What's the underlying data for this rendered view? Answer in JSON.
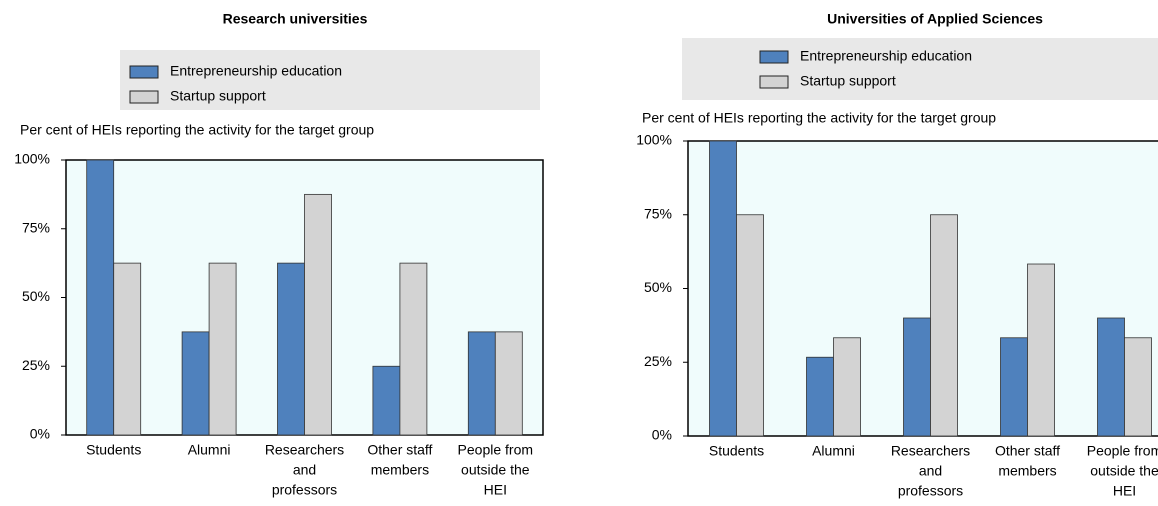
{
  "chart_data": [
    {
      "type": "bar",
      "title": "Research universities",
      "y_label": "Per cent of HEIs reporting the activity for the target group",
      "categories": [
        [
          "Students"
        ],
        [
          "Alumni"
        ],
        [
          "Researchers",
          "and",
          "professors"
        ],
        [
          "Other staff",
          "members"
        ],
        [
          "People from",
          "outside the",
          "HEI"
        ]
      ],
      "series": [
        {
          "name": "Entrepreneurship education",
          "color": "#4f81bd",
          "values": [
            100,
            37.5,
            62.5,
            25,
            37.5
          ]
        },
        {
          "name": "Startup support",
          "color": "#d3d3d3",
          "values": [
            62.5,
            62.5,
            87.5,
            62.5,
            37.5
          ]
        }
      ],
      "ylim": [
        0,
        100
      ],
      "yticks": [
        {
          "value": 0,
          "label": "0%"
        },
        {
          "value": 25,
          "label": "25%"
        },
        {
          "value": 50,
          "label": "50%"
        },
        {
          "value": 75,
          "label": "75%"
        },
        {
          "value": 100,
          "label": "100%"
        }
      ]
    },
    {
      "type": "bar",
      "title": "Universities of Applied Sciences",
      "y_label": "Per cent of HEIs reporting the activity for the target group",
      "categories": [
        [
          "Students"
        ],
        [
          "Alumni"
        ],
        [
          "Researchers",
          "and",
          "professors"
        ],
        [
          "Other staff",
          "members"
        ],
        [
          "People from",
          "outside the",
          "HEI"
        ]
      ],
      "series": [
        {
          "name": "Entrepreneurship education",
          "color": "#4f81bd",
          "values": [
            100,
            26.7,
            40,
            33.3,
            40
          ]
        },
        {
          "name": "Startup support",
          "color": "#d3d3d3",
          "values": [
            75,
            33.3,
            75,
            58.3,
            33.3
          ]
        }
      ],
      "ylim": [
        0,
        100
      ],
      "yticks": [
        {
          "value": 0,
          "label": "0%"
        },
        {
          "value": 25,
          "label": "25%"
        },
        {
          "value": 50,
          "label": "50%"
        },
        {
          "value": 75,
          "label": "75%"
        },
        {
          "value": 100,
          "label": "100%"
        }
      ]
    }
  ]
}
